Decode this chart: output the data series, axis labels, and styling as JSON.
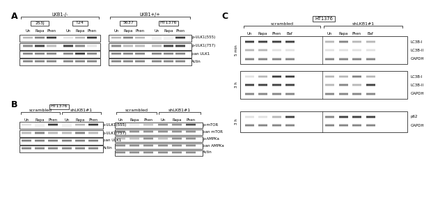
{
  "fig_width": 5.96,
  "fig_height": 2.63,
  "bg_color": "#ffffff",
  "panel_A": {
    "label": "A",
    "title_LKB1neg": "LKB1-/-",
    "title_LKB1pos": "LKB1+/+",
    "cell_lines_neg": [
      "253J",
      "T24"
    ],
    "cell_lines_pos": [
      "5637",
      "HT1376"
    ],
    "treatments": [
      "Un",
      "Rapa",
      "Phen"
    ],
    "row_labels": [
      "p-ULK1(555)",
      "p-ULK1(757)",
      "pan ULK1",
      "Actin"
    ]
  },
  "panel_B": {
    "label": "B",
    "title": "HT1376",
    "groups_left": [
      "scrambled",
      "shLKB1#1"
    ],
    "treatments_left": [
      "Un",
      "Rapa",
      "Phen"
    ],
    "row_labels_left": [
      "p-ULK1(555)",
      "p-ULK1(757)",
      "pan ULK1",
      "Actin"
    ],
    "row_labels_right": [
      "p-mTOR",
      "pan mTOR",
      "p-AMPKa",
      "pan AMPKa",
      "Actin"
    ]
  },
  "panel_C": {
    "label": "C",
    "title": "HT1376",
    "groups": [
      "scrambled",
      "shLKB1#1"
    ],
    "treatments": [
      "Un",
      "Rapa",
      "Phen",
      "Baf"
    ],
    "timepoints": [
      "5 min",
      "3 h",
      "3 h"
    ],
    "row_labels_tp1": [
      "LC3B-I",
      "LC3B-II",
      "GAPDH"
    ],
    "row_labels_tp2": [
      "LC3B-I",
      "LC3B-II",
      "GAPDH"
    ],
    "row_labels_tp3": [
      "p62",
      "GAPDH"
    ]
  },
  "text_color": "#000000",
  "band_color_dark": "#111111",
  "band_color_mid": "#555555",
  "band_color_light": "#999999",
  "band_color_vlight": "#cccccc",
  "band_color_empty": "#e8e8e8"
}
